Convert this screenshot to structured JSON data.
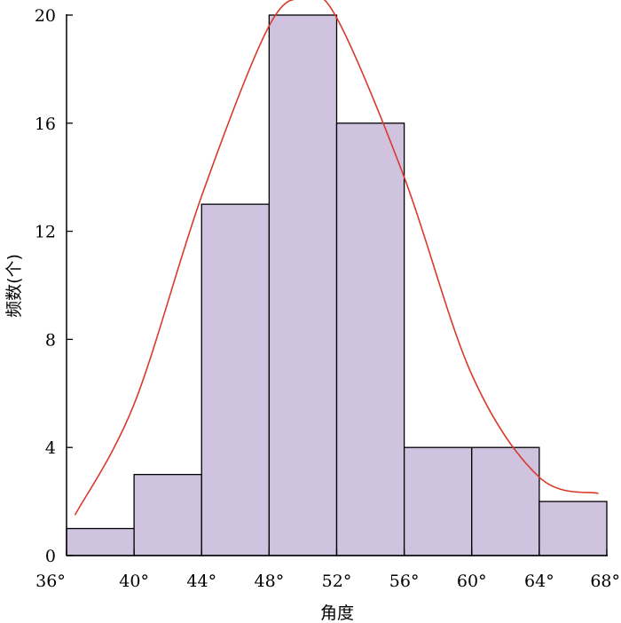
{
  "chart_data": {
    "type": "bar",
    "title": "",
    "xlabel": "角度",
    "ylabel": "频数(个)",
    "x_ticks": [
      "36°",
      "40°",
      "44°",
      "48°",
      "52°",
      "56°",
      "60°",
      "64°",
      "68°"
    ],
    "y_ticks": [
      "0",
      "4",
      "8",
      "12",
      "16",
      "20"
    ],
    "xlim": [
      36,
      68
    ],
    "ylim": [
      0,
      20
    ],
    "bins": [
      {
        "x0": 36,
        "x1": 40,
        "value": 1
      },
      {
        "x0": 40,
        "x1": 44,
        "value": 3
      },
      {
        "x0": 44,
        "x1": 48,
        "value": 13
      },
      {
        "x0": 48,
        "x1": 52,
        "value": 20
      },
      {
        "x0": 52,
        "x1": 56,
        "value": 16
      },
      {
        "x0": 56,
        "x1": 60,
        "value": 4
      },
      {
        "x0": 60,
        "x1": 64,
        "value": 4
      },
      {
        "x0": 64,
        "x1": 68,
        "value": 2
      }
    ],
    "fit_curve": {
      "type": "normal",
      "x": [
        36.5,
        40,
        44,
        48,
        50.2,
        52,
        56,
        60,
        64,
        67.5
      ],
      "y": [
        1.5,
        5.6,
        13.3,
        19.6,
        20.6,
        19.9,
        14.0,
        6.7,
        2.9,
        2.3
      ]
    },
    "grid": false,
    "legend": "none",
    "colors": {
      "bar_fill": "#cfc3e0",
      "bar_edge": "#000000",
      "curve": "#d93a2b",
      "axis": "#000000"
    }
  }
}
